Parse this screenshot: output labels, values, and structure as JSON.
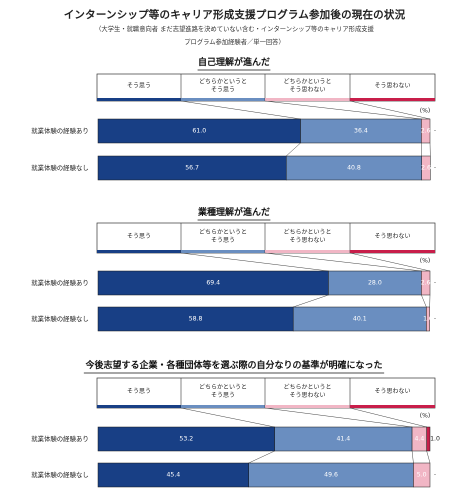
{
  "title": "インターンシップ等のキャリア形成支援プログラム参加後の現在の状況",
  "subtitle_lines": [
    "（大学生・就職意向者 まだ志望進路を決めていない含む・インターンシップ等のキャリア形成支援",
    "プログラム参加経験者／単一回答）"
  ],
  "unit_label": "(%)",
  "colors": {
    "strongly_agree": "#183f85",
    "somewhat_agree": "#6a8ec0",
    "somewhat_disagree": "#f1b6c5",
    "disagree": "#c81e4a",
    "dash": "#555555"
  },
  "chart_data": [
    {
      "type": "bar",
      "stacked": true,
      "orientation": "horizontal",
      "title": "自己理解が進んだ",
      "legend": [
        "そう思う",
        "どちらかというとそう思う",
        "どちらかというとそう思わない",
        "そう思わない"
      ],
      "categories": [
        "就業体験の経験あり",
        "就業体験の経験なし"
      ],
      "series": [
        {
          "name": "そう思う",
          "values": [
            61.0,
            56.7
          ],
          "labels": [
            "61.0",
            "56.7"
          ]
        },
        {
          "name": "どちらかというとそう思う",
          "values": [
            36.4,
            40.8
          ],
          "labels": [
            "36.4",
            "40.8"
          ]
        },
        {
          "name": "どちらかというとそう思わない",
          "values": [
            2.6,
            2.6
          ],
          "labels": [
            "2.6",
            "2.6"
          ]
        },
        {
          "name": "そう思わない",
          "values": [
            0,
            0
          ],
          "labels": [
            "-",
            "-"
          ]
        }
      ],
      "xlim": [
        0,
        100
      ]
    },
    {
      "type": "bar",
      "stacked": true,
      "orientation": "horizontal",
      "title": "業種理解が進んだ",
      "legend": [
        "そう思う",
        "どちらかというとそう思う",
        "どちらかというとそう思わない",
        "そう思わない"
      ],
      "categories": [
        "就業体験の経験あり",
        "就業体験の経験なし"
      ],
      "series": [
        {
          "name": "そう思う",
          "values": [
            69.4,
            58.8
          ],
          "labels": [
            "69.4",
            "58.8"
          ]
        },
        {
          "name": "どちらかというとそう思う",
          "values": [
            28.0,
            40.1
          ],
          "labels": [
            "28.0",
            "40.1"
          ]
        },
        {
          "name": "どちらかというとそう思わない",
          "values": [
            2.6,
            1.0
          ],
          "labels": [
            "2.6",
            "1.0"
          ]
        },
        {
          "name": "そう思わない",
          "values": [
            0,
            0
          ],
          "labels": [
            "-",
            "-"
          ]
        }
      ],
      "xlim": [
        0,
        100
      ]
    },
    {
      "type": "bar",
      "stacked": true,
      "orientation": "horizontal",
      "title": "今後志望する企業・各種団体等を選ぶ際の自分なりの基準が明確になった",
      "legend": [
        "そう思う",
        "どちらかというとそう思う",
        "どちらかというとそう思わない",
        "そう思わない"
      ],
      "categories": [
        "就業体験の経験あり",
        "就業体験の経験なし"
      ],
      "series": [
        {
          "name": "そう思う",
          "values": [
            53.2,
            45.4
          ],
          "labels": [
            "53.2",
            "45.4"
          ]
        },
        {
          "name": "どちらかというとそう思う",
          "values": [
            41.4,
            49.6
          ],
          "labels": [
            "41.4",
            "49.6"
          ]
        },
        {
          "name": "どちらかというとそう思わない",
          "values": [
            4.4,
            5.0
          ],
          "labels": [
            "4.4",
            "5.0"
          ]
        },
        {
          "name": "そう思わない",
          "values": [
            1.0,
            0
          ],
          "labels": [
            "1.0",
            "-"
          ]
        }
      ],
      "xlim": [
        0,
        100
      ]
    }
  ]
}
